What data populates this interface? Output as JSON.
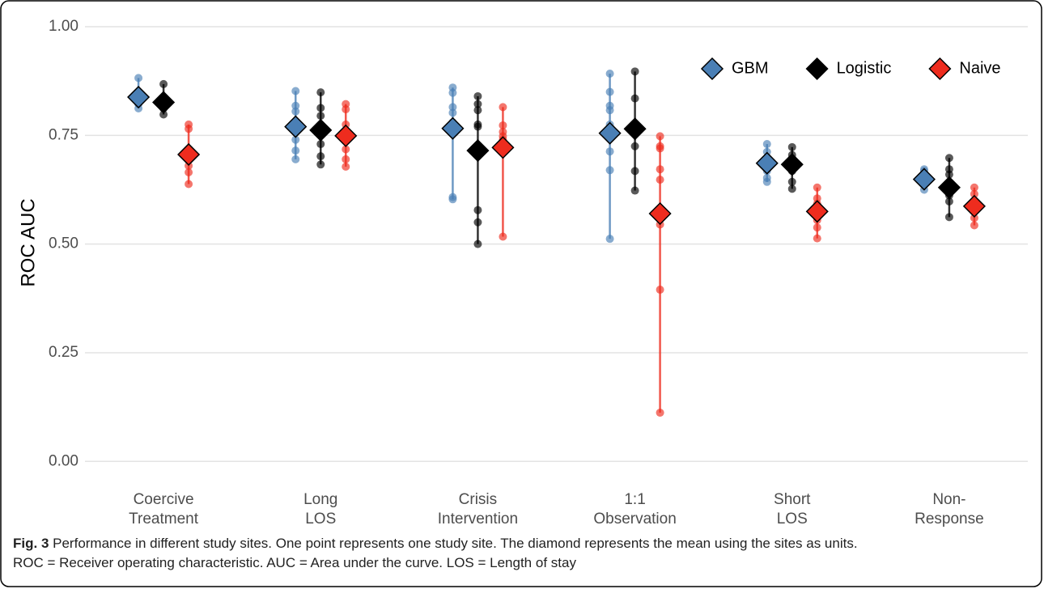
{
  "chart_data": {
    "type": "dot-range",
    "y_label": "ROC AUC",
    "categories": [
      [
        "Coercive",
        "Treatment"
      ],
      [
        "Long",
        "LOS"
      ],
      [
        "Crisis",
        "Intervention"
      ],
      [
        "1:1",
        "Observation"
      ],
      [
        "Short",
        "LOS"
      ],
      [
        "Non-",
        "Response"
      ]
    ],
    "ylim": [
      -0.02,
      1.0
    ],
    "yticks": [
      {
        "value": 0,
        "label": "0.00"
      },
      {
        "value": 0.25,
        "label": "0.25"
      },
      {
        "value": 0.5,
        "label": "0.50"
      },
      {
        "value": 0.75,
        "label": "0.75"
      },
      {
        "value": 1,
        "label": "1.00"
      }
    ],
    "grid": true,
    "legend_position": "top-right",
    "series": [
      {
        "name": "GBM",
        "color": "#4a7fb5",
        "values": [
          0.838,
          0.77,
          0.766,
          0.755,
          0.686,
          0.649
        ],
        "sites": [
          [
            0.882,
            0.835,
            0.822,
            0.812
          ],
          [
            0.852,
            0.818,
            0.805,
            0.74,
            0.715,
            0.695
          ],
          [
            0.86,
            0.848,
            0.815,
            0.802,
            0.78,
            0.768,
            0.608,
            0.603
          ],
          [
            0.892,
            0.85,
            0.818,
            0.808,
            0.775,
            0.713,
            0.67,
            0.512
          ],
          [
            0.73,
            0.712,
            0.693,
            0.668,
            0.652,
            0.643
          ],
          [
            0.672,
            0.668,
            0.65,
            0.638,
            0.625
          ]
        ]
      },
      {
        "name": "Logistic",
        "color": "#000000",
        "values": [
          0.826,
          0.762,
          0.715,
          0.765,
          0.683,
          0.63
        ],
        "sites": [
          [
            0.868,
            0.832,
            0.82,
            0.812,
            0.798
          ],
          [
            0.849,
            0.813,
            0.795,
            0.762,
            0.73,
            0.702,
            0.683
          ],
          [
            0.84,
            0.822,
            0.808,
            0.775,
            0.77,
            0.578,
            0.55,
            0.5
          ],
          [
            0.897,
            0.835,
            0.76,
            0.725,
            0.668,
            0.623
          ],
          [
            0.723,
            0.705,
            0.695,
            0.668,
            0.643,
            0.627
          ],
          [
            0.698,
            0.672,
            0.66,
            0.628,
            0.612,
            0.598,
            0.562
          ]
        ]
      },
      {
        "name": "Naive",
        "color": "#ee2c1e",
        "values": [
          0.706,
          0.749,
          0.722,
          0.57,
          0.575,
          0.587
        ],
        "sites": [
          [
            0.775,
            0.765,
            0.715,
            0.68,
            0.665,
            0.638
          ],
          [
            0.822,
            0.81,
            0.775,
            0.748,
            0.718,
            0.695,
            0.678
          ],
          [
            0.815,
            0.773,
            0.758,
            0.748,
            0.74,
            0.517
          ],
          [
            0.748,
            0.725,
            0.72,
            0.672,
            0.648,
            0.545,
            0.395,
            0.112
          ],
          [
            0.63,
            0.605,
            0.593,
            0.575,
            0.555,
            0.538,
            0.513
          ],
          [
            0.63,
            0.615,
            0.597,
            0.58,
            0.56,
            0.543
          ]
        ]
      }
    ],
    "caption_label": "Fig. 3",
    "caption_text": "Performance in different study sites. One point represents one study site. The diamond represents the mean using the sites as units.",
    "caption_text_2": "ROC = Receiver operating characteristic. AUC = Area under the curve. LOS = Length of stay"
  }
}
